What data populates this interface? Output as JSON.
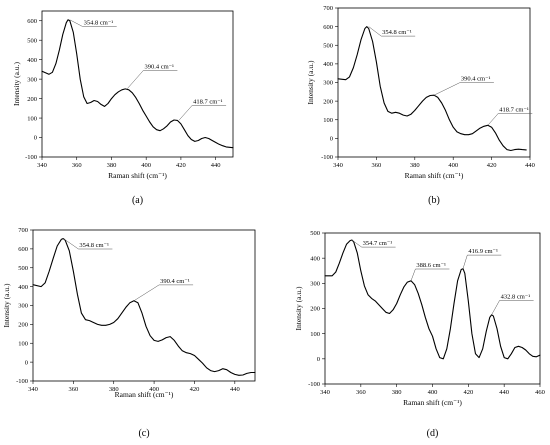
{
  "chart_data": [
    {
      "type": "line",
      "panel_label": "(a)",
      "xlabel": "Raman shift (cm⁻¹)",
      "ylabel": "Intensity (a.u.)",
      "xlim": [
        340,
        450
      ],
      "ylim": [
        -100,
        650
      ],
      "x_ticks": [
        340,
        360,
        380,
        400,
        420,
        440
      ],
      "y_ticks": [
        -100,
        0,
        100,
        200,
        300,
        400,
        500,
        600
      ],
      "series": [
        {
          "x": [
            340,
            344,
            346,
            348,
            350,
            352,
            354,
            355,
            356,
            358,
            360,
            362,
            364,
            366,
            368,
            370,
            372,
            374,
            376,
            378,
            380,
            382,
            384,
            386,
            388,
            390,
            392,
            394,
            396,
            398,
            400,
            402,
            404,
            406,
            408,
            410,
            412,
            414,
            416,
            418,
            420,
            422,
            424,
            426,
            428,
            430,
            432,
            434,
            436,
            438,
            440,
            442,
            444,
            446,
            448,
            450
          ],
          "y": [
            340,
            325,
            335,
            380,
            450,
            530,
            590,
            605,
            600,
            540,
            430,
            300,
            210,
            175,
            180,
            190,
            185,
            170,
            160,
            175,
            200,
            220,
            235,
            245,
            250,
            245,
            230,
            205,
            175,
            140,
            110,
            80,
            55,
            40,
            35,
            45,
            60,
            80,
            90,
            88,
            70,
            40,
            10,
            -10,
            -20,
            -15,
            -5,
            0,
            -5,
            -15,
            -25,
            -35,
            -42,
            -48,
            -50,
            -52
          ]
        }
      ],
      "annotations": [
        {
          "text": "354.8 cm⁻¹",
          "x": 356,
          "y": 605,
          "label_x": 364,
          "label_y": 580
        },
        {
          "text": "390.4 cm⁻¹",
          "x": 389,
          "y": 250,
          "label_x": 399,
          "label_y": 355
        },
        {
          "text": "418.7 cm⁻¹",
          "x": 419,
          "y": 90,
          "label_x": 427,
          "label_y": 175
        }
      ]
    },
    {
      "type": "line",
      "panel_label": "(b)",
      "xlabel": "Raman shift (cm⁻¹)",
      "ylabel": "Intensity (a.u.)",
      "xlim": [
        340,
        440
      ],
      "ylim": [
        -100,
        700
      ],
      "x_ticks": [
        340,
        360,
        380,
        400,
        420,
        440
      ],
      "y_ticks": [
        -100,
        0,
        100,
        200,
        300,
        400,
        500,
        600,
        700
      ],
      "series": [
        {
          "x": [
            340,
            344,
            346,
            348,
            350,
            352,
            354,
            355,
            356,
            358,
            360,
            362,
            364,
            366,
            368,
            370,
            372,
            374,
            376,
            378,
            380,
            382,
            384,
            386,
            388,
            390,
            392,
            394,
            396,
            398,
            400,
            402,
            404,
            406,
            408,
            410,
            412,
            414,
            416,
            418,
            420,
            422,
            424,
            426,
            428,
            430,
            432,
            434,
            436,
            438
          ],
          "y": [
            320,
            315,
            330,
            380,
            450,
            530,
            590,
            600,
            590,
            520,
            410,
            280,
            190,
            145,
            135,
            140,
            135,
            125,
            120,
            130,
            150,
            175,
            200,
            220,
            230,
            232,
            220,
            190,
            150,
            100,
            60,
            35,
            25,
            20,
            20,
            25,
            40,
            55,
            65,
            70,
            60,
            30,
            -10,
            -40,
            -60,
            -65,
            -60,
            -58,
            -60,
            -62
          ]
        }
      ],
      "annotations": [
        {
          "text": "354.8 cm⁻¹",
          "x": 356,
          "y": 600,
          "label_x": 363,
          "label_y": 560
        },
        {
          "text": "390.4 cm⁻¹",
          "x": 390,
          "y": 232,
          "label_x": 404,
          "label_y": 310
        },
        {
          "text": "418.7 cm⁻¹",
          "x": 418,
          "y": 70,
          "label_x": 424,
          "label_y": 145
        }
      ]
    },
    {
      "type": "line",
      "panel_label": "(c)",
      "xlabel": "Raman shift (cm⁻¹)",
      "ylabel": "Intensity (a.u.)",
      "xlim": [
        340,
        450
      ],
      "ylim": [
        -100,
        700
      ],
      "x_ticks": [
        340,
        360,
        380,
        400,
        420,
        440
      ],
      "y_ticks": [
        -100,
        0,
        100,
        200,
        300,
        400,
        500,
        600,
        700
      ],
      "series": [
        {
          "x": [
            340,
            344,
            346,
            348,
            350,
            352,
            354,
            355,
            356,
            358,
            360,
            362,
            364,
            366,
            368,
            370,
            372,
            374,
            376,
            378,
            380,
            382,
            384,
            386,
            388,
            390,
            392,
            394,
            396,
            398,
            400,
            402,
            404,
            406,
            408,
            410,
            412,
            414,
            416,
            418,
            420,
            422,
            424,
            426,
            428,
            430,
            432,
            434,
            436,
            438,
            440,
            442,
            444,
            446,
            448,
            450
          ],
          "y": [
            410,
            400,
            420,
            480,
            550,
            615,
            650,
            655,
            645,
            590,
            480,
            360,
            260,
            225,
            220,
            210,
            200,
            195,
            195,
            200,
            210,
            230,
            260,
            290,
            315,
            325,
            315,
            260,
            190,
            140,
            115,
            110,
            118,
            130,
            135,
            115,
            85,
            60,
            50,
            45,
            35,
            15,
            -5,
            -30,
            -45,
            -50,
            -45,
            -35,
            -40,
            -55,
            -65,
            -70,
            -68,
            -60,
            -55,
            -55
          ]
        }
      ],
      "annotations": [
        {
          "text": "354.8 cm⁻¹",
          "x": 355,
          "y": 655,
          "label_x": 363,
          "label_y": 610
        },
        {
          "text": "390.4 cm⁻¹",
          "x": 390,
          "y": 325,
          "label_x": 403,
          "label_y": 420
        }
      ]
    },
    {
      "type": "line",
      "panel_label": "(d)",
      "xlabel": "Raman shift (cm⁻¹)",
      "ylabel": "Intensity (a.u.)",
      "xlim": [
        340,
        460
      ],
      "ylim": [
        -100,
        500
      ],
      "x_ticks": [
        340,
        360,
        380,
        400,
        420,
        440,
        460
      ],
      "y_ticks": [
        -100,
        0,
        100,
        200,
        300,
        400,
        500
      ],
      "series": [
        {
          "x": [
            340,
            344,
            346,
            348,
            350,
            352,
            354,
            355,
            356,
            358,
            360,
            362,
            364,
            366,
            368,
            370,
            372,
            374,
            376,
            378,
            380,
            382,
            384,
            386,
            388,
            390,
            392,
            394,
            396,
            398,
            400,
            402,
            404,
            406,
            408,
            410,
            412,
            414,
            416,
            417,
            418,
            420,
            422,
            424,
            426,
            428,
            430,
            432,
            433,
            434,
            436,
            438,
            440,
            442,
            444,
            446,
            448,
            450,
            452,
            454,
            456,
            458,
            460
          ],
          "y": [
            330,
            330,
            345,
            380,
            420,
            455,
            470,
            472,
            465,
            420,
            350,
            290,
            255,
            240,
            230,
            215,
            200,
            185,
            180,
            195,
            220,
            255,
            285,
            305,
            310,
            295,
            260,
            215,
            165,
            120,
            90,
            40,
            5,
            0,
            40,
            120,
            220,
            310,
            355,
            358,
            340,
            230,
            100,
            20,
            5,
            40,
            110,
            165,
            175,
            170,
            120,
            50,
            5,
            0,
            20,
            45,
            50,
            45,
            35,
            20,
            10,
            8,
            15
          ]
        }
      ],
      "annotations": [
        {
          "text": "354.7 cm⁻¹",
          "x": 355,
          "y": 472,
          "label_x": 361,
          "label_y": 452
        },
        {
          "text": "388.6 cm⁻¹",
          "x": 388,
          "y": 310,
          "label_x": 391,
          "label_y": 365
        },
        {
          "text": "416.9 cm⁻¹",
          "x": 417,
          "y": 358,
          "label_x": 420,
          "label_y": 420
        },
        {
          "text": "432.8 cm⁻¹",
          "x": 433,
          "y": 175,
          "label_x": 438,
          "label_y": 240
        }
      ]
    }
  ]
}
